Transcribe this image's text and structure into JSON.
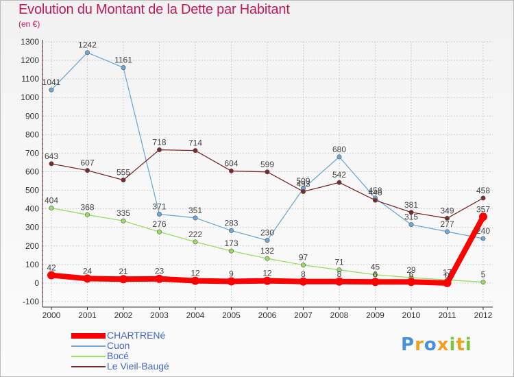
{
  "header": {
    "title": "Evolution du Montant de la Dette par Habitant",
    "subtitle": "(en €)"
  },
  "logo": {
    "text": "Proxiti"
  },
  "chart_data": {
    "type": "line",
    "title": "Evolution du Montant de la Dette par Habitant",
    "subtitle": "(en €)",
    "xlabel": "",
    "ylabel": "",
    "categories": [
      "2000",
      "2001",
      "2002",
      "2003",
      "2004",
      "2005",
      "2006",
      "2007",
      "2008",
      "2009",
      "2010",
      "2011",
      "2012"
    ],
    "ylim": [
      -100,
      1300
    ],
    "yticks": [
      -100,
      0,
      100,
      200,
      300,
      400,
      500,
      600,
      700,
      800,
      900,
      1000,
      1100,
      1200,
      1300
    ],
    "grid": true,
    "legend": "bottom-left",
    "series": [
      {
        "name": "CHARTRENé",
        "color": "#ff0000",
        "values": [
          42,
          24,
          21,
          23,
          12,
          9,
          12,
          8,
          8,
          6,
          6,
          0,
          357
        ],
        "labels": [
          "42",
          "24",
          "21",
          "23",
          "12",
          "9",
          "12",
          "8",
          "8",
          "6",
          "6",
          "0",
          "357"
        ]
      },
      {
        "name": "Cuon",
        "color": "#6fa8d6",
        "values": [
          1041,
          1242,
          1161,
          371,
          351,
          283,
          230,
          509,
          680,
          458,
          315,
          277,
          240
        ],
        "labels": [
          "1041",
          "1242",
          "1161",
          "371",
          "351",
          "283",
          "230",
          "509",
          "680",
          "458",
          "315",
          "277",
          "240"
        ]
      },
      {
        "name": "Bocé",
        "color": "#99dd66",
        "values": [
          404,
          368,
          335,
          276,
          222,
          173,
          132,
          97,
          71,
          45,
          29,
          17,
          5
        ],
        "labels": [
          "404",
          "368",
          "335",
          "276",
          "222",
          "173",
          "132",
          "97",
          "71",
          "45",
          "29",
          "17",
          "5"
        ]
      },
      {
        "name": "Le Vieil-Baugé",
        "color": "#7a2a2a",
        "values": [
          643,
          607,
          555,
          718,
          714,
          604,
          599,
          493,
          542,
          446,
          381,
          349,
          458
        ],
        "labels": [
          "643",
          "607",
          "555",
          "718",
          "714",
          "604",
          "599",
          "493",
          "542",
          "446",
          "381",
          "349",
          "458"
        ]
      }
    ]
  }
}
